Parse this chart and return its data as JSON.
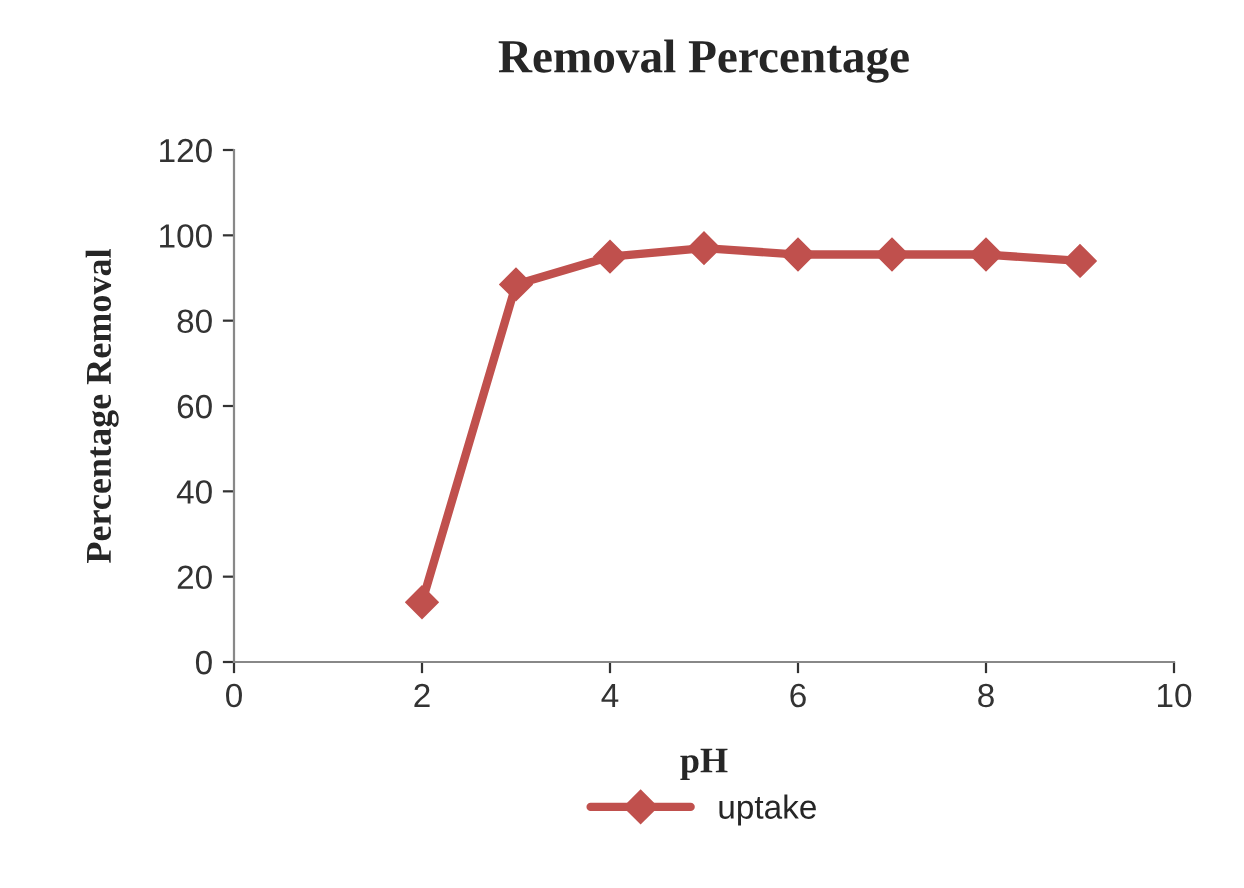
{
  "chart_data": {
    "type": "line",
    "title": "Removal Percentage",
    "xlabel": "pH",
    "ylabel": "Percentage Removal",
    "x": [
      2,
      3,
      4,
      5,
      6,
      7,
      8,
      9
    ],
    "series": [
      {
        "name": "uptake",
        "color": "#c0504d",
        "values": [
          14,
          88.5,
          95,
          97,
          95.5,
          95.5,
          95.5,
          94
        ]
      }
    ],
    "xlim": [
      0,
      10
    ],
    "xticks": [
      0,
      2,
      4,
      6,
      8,
      10
    ],
    "ylim": [
      0,
      120
    ],
    "yticks": [
      0,
      20,
      40,
      60,
      80,
      100,
      120
    ],
    "grid": false,
    "legend": "bottom",
    "marker": "diamond",
    "line_style": "solid"
  }
}
